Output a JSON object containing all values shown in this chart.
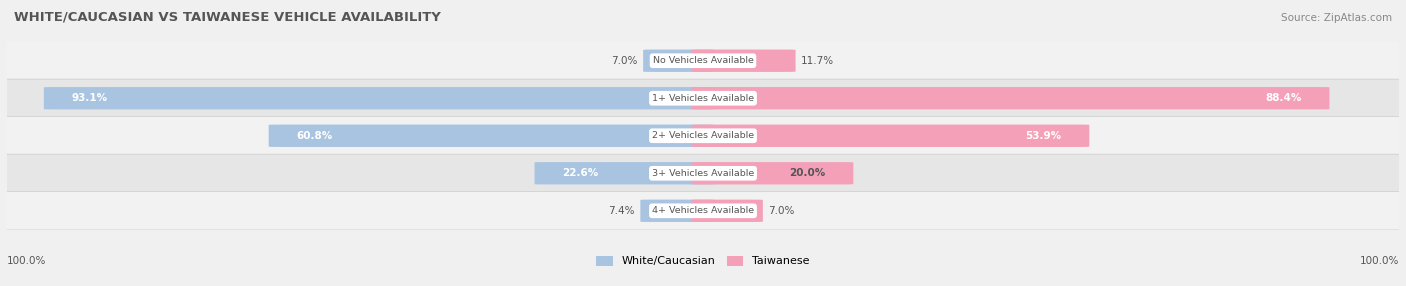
{
  "title": "WHITE/CAUCASIAN VS TAIWANESE VEHICLE AVAILABILITY",
  "source": "Source: ZipAtlas.com",
  "categories": [
    "No Vehicles Available",
    "1+ Vehicles Available",
    "2+ Vehicles Available",
    "3+ Vehicles Available",
    "4+ Vehicles Available"
  ],
  "white_values": [
    7.0,
    93.1,
    60.8,
    22.6,
    7.4
  ],
  "taiwanese_values": [
    11.7,
    88.4,
    53.9,
    20.0,
    7.0
  ],
  "white_color": "#a8c4e0",
  "taiwanese_color": "#f4a0b8",
  "row_bg_even": "#f2f2f2",
  "row_bg_odd": "#e6e6e6",
  "row_border_color": "#cccccc",
  "title_color": "#555555",
  "text_color": "#555555",
  "max_value": 100.0,
  "bar_height": 0.58,
  "figsize": [
    14.06,
    2.86
  ],
  "dpi": 100
}
